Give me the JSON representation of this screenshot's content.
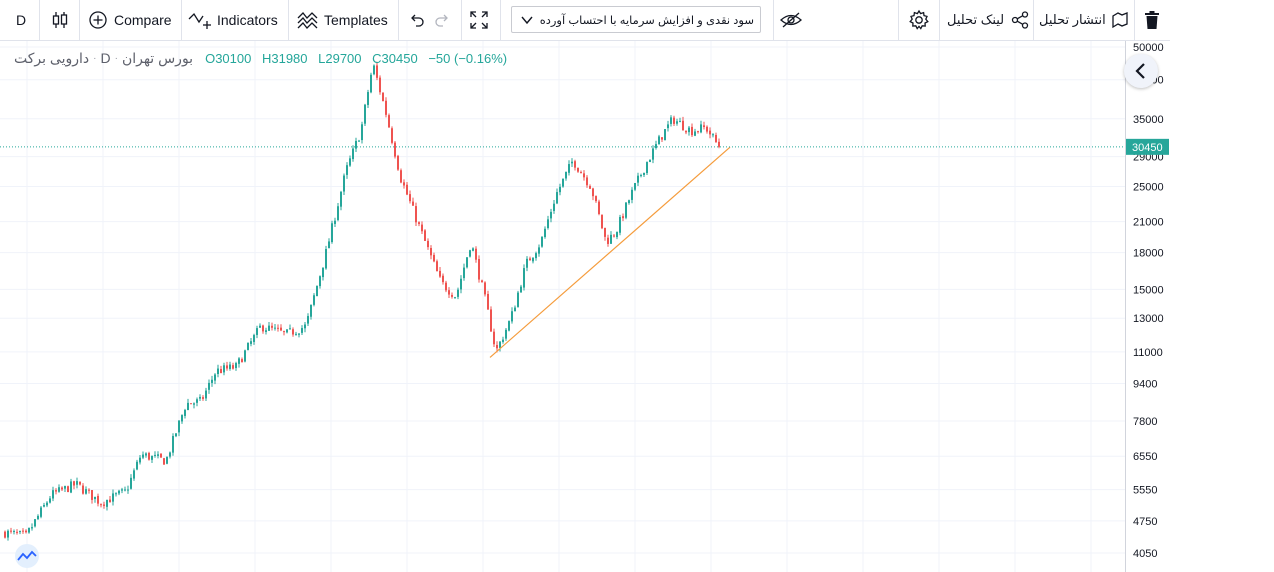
{
  "toolbar": {
    "interval": "D",
    "compare_label": "Compare",
    "indicators_label": "Indicators",
    "templates_label": "Templates",
    "study_select_value": "سود نقدی و افزایش سرمایه با احتساب آورده",
    "share_link_label": "لینک تحلیل",
    "publish_label": "انتشار تحلیل"
  },
  "legend": {
    "symbol_name": "دارویی برکت",
    "interval": "D",
    "exchange": "بورس تهران",
    "open": "O30100",
    "high": "H31980",
    "low": "L29700",
    "close": "C30450",
    "change": "−50 (−0.16%)"
  },
  "colors": {
    "up": "#26a69a",
    "down": "#ef5350",
    "trendline": "#f59c3c",
    "price_line": "#26a69a",
    "grid": "#f0f3fa"
  },
  "chart_data": {
    "type": "candlestick",
    "y_scale": "log",
    "ylim": [
      3800,
      52000
    ],
    "y_ticks": [
      4050,
      4750,
      5550,
      6550,
      7800,
      9400,
      11000,
      13000,
      15000,
      18000,
      21000,
      25000,
      29000,
      35000,
      42500,
      50000
    ],
    "last_price": "30450",
    "approx_close_path": [
      [
        0,
        4500
      ],
      [
        25,
        4400
      ],
      [
        50,
        5400
      ],
      [
        75,
        5700
      ],
      [
        100,
        5200
      ],
      [
        125,
        5500
      ],
      [
        140,
        6600
      ],
      [
        165,
        6400
      ],
      [
        185,
        8500
      ],
      [
        200,
        8600
      ],
      [
        215,
        10000
      ],
      [
        235,
        10200
      ],
      [
        260,
        12500
      ],
      [
        285,
        12000
      ],
      [
        305,
        12500
      ],
      [
        325,
        18000
      ],
      [
        345,
        27000
      ],
      [
        360,
        33000
      ],
      [
        372,
        46000
      ],
      [
        385,
        36000
      ],
      [
        400,
        26000
      ],
      [
        420,
        20000
      ],
      [
        440,
        15500
      ],
      [
        455,
        14500
      ],
      [
        470,
        19000
      ],
      [
        485,
        14000
      ],
      [
        495,
        11000
      ],
      [
        510,
        13000
      ],
      [
        525,
        17000
      ],
      [
        540,
        19000
      ],
      [
        555,
        24000
      ],
      [
        572,
        28500
      ],
      [
        590,
        25000
      ],
      [
        605,
        19000
      ],
      [
        615,
        20000
      ],
      [
        630,
        24000
      ],
      [
        645,
        28000
      ],
      [
        660,
        32000
      ],
      [
        672,
        35000
      ],
      [
        690,
        33000
      ],
      [
        705,
        33500
      ],
      [
        718,
        30450
      ]
    ],
    "trendline": {
      "start": [
        490,
        10700
      ],
      "end": [
        730,
        30400
      ]
    }
  }
}
